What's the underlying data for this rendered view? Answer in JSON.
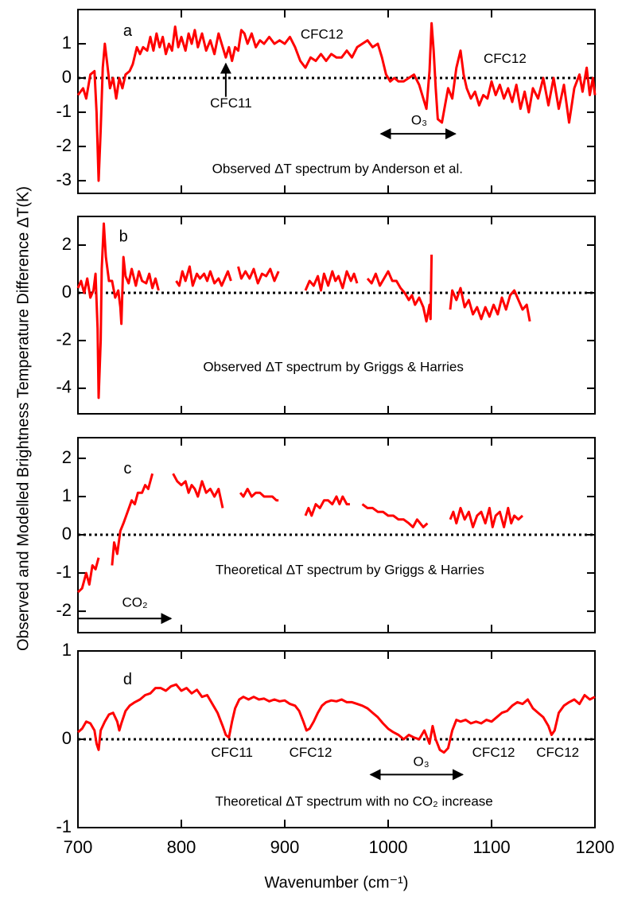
{
  "chart_data": [
    {
      "type": "line",
      "label": "a",
      "title": "Observed ΔT spectrum by Anderson et al.",
      "ylabel": "Observed and Modelled Brightness Temperature Difference ΔT(K)",
      "annotations": [
        "CFC12",
        "CFC11",
        "O₃",
        "CFC12"
      ],
      "color": "#ff0000",
      "zero_line": true,
      "xlim": [
        700,
        1200
      ],
      "ylim": [
        -3.37,
        2.0
      ],
      "yticks": [
        -3,
        -2,
        -1,
        0,
        1
      ],
      "x": [
        700,
        705,
        708,
        712,
        716,
        718,
        720,
        722,
        724,
        726,
        728,
        731,
        734,
        737,
        740,
        743,
        746,
        750,
        753,
        757,
        760,
        763,
        767,
        770,
        773,
        776,
        779,
        782,
        785,
        788,
        791,
        794,
        797,
        800,
        804,
        807,
        810,
        813,
        816,
        820,
        824,
        828,
        832,
        836,
        840,
        843,
        846,
        849,
        852,
        855,
        858,
        861,
        864,
        868,
        872,
        876,
        880,
        885,
        890,
        895,
        900,
        905,
        910,
        915,
        920,
        925,
        930,
        935,
        940,
        945,
        950,
        955,
        960,
        965,
        970,
        975,
        980,
        985,
        990,
        994,
        998,
        1002,
        1006,
        1010,
        1015,
        1020,
        1025,
        1030,
        1034,
        1037,
        1040,
        1042,
        1044,
        1046,
        1048,
        1052,
        1055,
        1058,
        1062,
        1066,
        1070,
        1073,
        1076,
        1080,
        1084,
        1088,
        1092,
        1096,
        1100,
        1104,
        1108,
        1112,
        1116,
        1120,
        1124,
        1128,
        1132,
        1136,
        1140,
        1145,
        1150,
        1155,
        1160,
        1165,
        1170,
        1175,
        1180,
        1185,
        1188,
        1192,
        1195,
        1198,
        1200
      ],
      "values": [
        -0.5,
        -0.3,
        -0.6,
        0.1,
        0.2,
        -1.0,
        -3.0,
        -1.5,
        0.3,
        1.0,
        0.5,
        -0.3,
        0.0,
        -0.6,
        0.0,
        -0.3,
        0.1,
        0.2,
        0.4,
        0.9,
        0.7,
        0.9,
        0.8,
        1.2,
        0.8,
        1.3,
        0.9,
        1.2,
        0.7,
        1.0,
        0.8,
        1.5,
        0.9,
        1.2,
        0.8,
        1.3,
        1.0,
        1.4,
        0.9,
        1.3,
        0.8,
        1.1,
        0.7,
        1.3,
        0.9,
        0.6,
        0.9,
        0.5,
        0.9,
        0.8,
        1.4,
        1.3,
        1.0,
        1.3,
        0.9,
        1.1,
        1.0,
        1.2,
        1.0,
        1.1,
        1.0,
        1.2,
        0.9,
        0.5,
        0.3,
        0.6,
        0.5,
        0.7,
        0.5,
        0.7,
        0.6,
        0.6,
        0.8,
        0.6,
        0.9,
        1.0,
        1.1,
        0.9,
        1.0,
        0.6,
        0.1,
        -0.1,
        0.0,
        -0.1,
        -0.1,
        0.0,
        0.1,
        -0.2,
        -0.6,
        -0.9,
        0.2,
        1.6,
        0.8,
        -0.3,
        -1.2,
        -1.3,
        -0.8,
        -0.3,
        -0.6,
        0.3,
        0.8,
        0.1,
        -0.3,
        -0.6,
        -0.4,
        -0.8,
        -0.5,
        -0.6,
        -0.1,
        -0.5,
        -0.2,
        -0.6,
        -0.3,
        -0.7,
        -0.2,
        -0.9,
        -0.4,
        -1.0,
        -0.3,
        -0.6,
        0.0,
        -0.8,
        0.0,
        -0.9,
        -0.2,
        -1.3,
        -0.3,
        0.1,
        -0.4,
        0.3,
        -0.5,
        0.0,
        -0.5
      ]
    },
    {
      "type": "line",
      "label": "b",
      "title": "Observed ΔT spectrum by Griggs & Harries",
      "annotations": [],
      "color": "#ff0000",
      "zero_line": true,
      "xlim": [
        700,
        1200
      ],
      "ylim": [
        -5.07,
        3.2
      ],
      "yticks": [
        -4,
        -2,
        0,
        2
      ],
      "x": [
        700,
        703,
        706,
        709,
        712,
        715,
        717,
        719,
        720,
        722,
        723,
        725,
        727,
        730,
        733,
        736,
        739,
        741,
        742,
        744,
        746,
        749,
        752,
        756,
        759,
        762,
        766,
        769,
        772,
        775,
        778,
        786,
        795,
        798,
        801,
        804,
        808,
        811,
        815,
        818,
        822,
        825,
        828,
        832,
        836,
        839,
        842,
        845,
        848,
        851,
        855,
        858,
        862,
        866,
        870,
        874,
        878,
        882,
        886,
        890,
        894,
        907,
        920,
        924,
        928,
        932,
        935,
        938,
        942,
        946,
        949,
        952,
        956,
        960,
        964,
        967,
        970,
        975,
        980,
        984,
        988,
        992,
        996,
        1000,
        1004,
        1008,
        1012,
        1016,
        1020,
        1023,
        1026,
        1030,
        1034,
        1037,
        1040,
        1041,
        1042,
        1050,
        1060,
        1062,
        1066,
        1070,
        1074,
        1078,
        1082,
        1086,
        1090,
        1094,
        1098,
        1102,
        1106,
        1110,
        1114,
        1118,
        1122,
        1126,
        1130,
        1134,
        1137
      ],
      "values": [
        0.2,
        0.5,
        0.0,
        0.6,
        -0.2,
        0.1,
        0.8,
        -1.5,
        -4.4,
        -2.0,
        1.0,
        2.9,
        1.5,
        0.5,
        0.5,
        -0.2,
        0.1,
        -0.6,
        -1.3,
        1.5,
        0.7,
        0.4,
        1.0,
        0.3,
        0.9,
        0.5,
        0.4,
        0.8,
        0.2,
        0.6,
        0.1,
        null,
        0.5,
        0.3,
        0.9,
        0.5,
        1.1,
        0.3,
        0.8,
        0.6,
        0.8,
        0.5,
        0.9,
        0.4,
        0.6,
        0.3,
        0.6,
        0.9,
        0.5,
        null,
        1.1,
        0.6,
        0.9,
        0.6,
        1.0,
        0.4,
        0.8,
        0.7,
        1.0,
        0.5,
        0.9,
        null,
        0.1,
        0.5,
        0.3,
        0.7,
        0.1,
        0.8,
        0.3,
        0.9,
        0.5,
        0.7,
        0.2,
        0.9,
        0.5,
        0.8,
        0.4,
        null,
        0.6,
        0.4,
        0.8,
        0.3,
        0.6,
        0.9,
        0.5,
        0.5,
        0.2,
        0.0,
        -0.3,
        -0.1,
        -0.5,
        -0.2,
        -0.6,
        -1.2,
        -0.5,
        -1.1,
        1.6,
        null,
        -0.7,
        0.1,
        -0.3,
        0.2,
        -0.6,
        -0.3,
        -0.9,
        -0.6,
        -1.1,
        -0.6,
        -1.0,
        -0.5,
        -0.9,
        -0.2,
        -0.7,
        -0.1,
        0.1,
        -0.3,
        -0.7,
        -0.5,
        -1.2
      ]
    },
    {
      "type": "line",
      "label": "c",
      "title": "Theoretical ΔT spectrum by Griggs & Harries",
      "annotations": [
        "CO₂"
      ],
      "color": "#ff0000",
      "zero_line": true,
      "xlim": [
        700,
        1200
      ],
      "ylim": [
        -2.56,
        2.54
      ],
      "yticks": [
        -2,
        -1,
        0,
        1,
        2
      ],
      "x": [
        700,
        704,
        708,
        711,
        714,
        717,
        720,
        727,
        733,
        735,
        738,
        741,
        744,
        748,
        752,
        755,
        758,
        762,
        765,
        768,
        772,
        782,
        792,
        796,
        800,
        804,
        807,
        810,
        813,
        816,
        820,
        824,
        828,
        832,
        836,
        840,
        848,
        857,
        860,
        864,
        868,
        872,
        876,
        880,
        884,
        888,
        892,
        894,
        907,
        920,
        923,
        926,
        930,
        934,
        938,
        942,
        946,
        950,
        953,
        956,
        960,
        963,
        969,
        975,
        980,
        985,
        990,
        995,
        1000,
        1005,
        1010,
        1015,
        1020,
        1024,
        1028,
        1031,
        1034,
        1038,
        1049,
        1060,
        1063,
        1066,
        1070,
        1074,
        1078,
        1082,
        1086,
        1090,
        1094,
        1098,
        1101,
        1104,
        1108,
        1112,
        1116,
        1119,
        1122,
        1126,
        1130
      ],
      "values": [
        -1.5,
        -1.4,
        -1.0,
        -1.3,
        -0.8,
        -0.9,
        -0.6,
        null,
        -0.8,
        -0.2,
        -0.5,
        0.1,
        0.3,
        0.6,
        0.9,
        0.8,
        1.1,
        1.1,
        1.3,
        1.2,
        1.6,
        null,
        1.6,
        1.4,
        1.3,
        1.4,
        1.1,
        1.3,
        1.2,
        1.0,
        1.4,
        1.1,
        1.2,
        1.0,
        1.2,
        0.7,
        null,
        1.1,
        1.0,
        1.2,
        1.0,
        1.1,
        1.1,
        1.0,
        1.0,
        1.0,
        0.9,
        0.9,
        null,
        0.5,
        0.7,
        0.5,
        0.8,
        0.7,
        0.9,
        0.9,
        0.8,
        1.0,
        0.8,
        1.0,
        0.8,
        0.8,
        null,
        0.8,
        0.7,
        0.7,
        0.6,
        0.6,
        0.5,
        0.5,
        0.4,
        0.4,
        0.3,
        0.2,
        0.4,
        0.3,
        0.2,
        0.3,
        null,
        0.4,
        0.6,
        0.3,
        0.7,
        0.4,
        0.6,
        0.2,
        0.5,
        0.6,
        0.3,
        0.7,
        0.2,
        0.5,
        0.6,
        0.2,
        0.7,
        0.3,
        0.5,
        0.4,
        0.5
      ]
    },
    {
      "type": "line",
      "label": "d",
      "title": "Theoretical ΔT spectrum with no CO₂ increase",
      "xlabel": "Wavenumber (cm⁻¹)",
      "annotations": [
        "CFC11",
        "CFC12",
        "O₃",
        "CFC12",
        "CFC12"
      ],
      "color": "#ff0000",
      "zero_line": true,
      "xlim": [
        700,
        1200
      ],
      "ylim": [
        -1,
        1
      ],
      "yticks": [
        -1,
        0,
        1
      ],
      "xticks": [
        700,
        800,
        900,
        1000,
        1100,
        1200
      ],
      "x": [
        700,
        704,
        708,
        712,
        716,
        718,
        720,
        722,
        726,
        730,
        734,
        738,
        740,
        742,
        746,
        750,
        755,
        760,
        765,
        770,
        775,
        780,
        785,
        790,
        795,
        800,
        805,
        810,
        815,
        820,
        825,
        830,
        835,
        840,
        843,
        846,
        849,
        852,
        856,
        860,
        865,
        870,
        875,
        880,
        885,
        890,
        895,
        900,
        905,
        910,
        914,
        918,
        921,
        924,
        928,
        932,
        936,
        940,
        945,
        950,
        955,
        960,
        965,
        970,
        975,
        980,
        985,
        990,
        995,
        1000,
        1005,
        1010,
        1015,
        1020,
        1025,
        1030,
        1035,
        1040,
        1043,
        1046,
        1050,
        1054,
        1058,
        1062,
        1066,
        1070,
        1075,
        1080,
        1085,
        1090,
        1095,
        1100,
        1105,
        1110,
        1115,
        1120,
        1125,
        1130,
        1135,
        1140,
        1145,
        1150,
        1155,
        1158,
        1161,
        1165,
        1170,
        1175,
        1180,
        1185,
        1190,
        1195,
        1200
      ],
      "values": [
        0.08,
        0.12,
        0.2,
        0.18,
        0.1,
        -0.05,
        -0.12,
        0.1,
        0.2,
        0.28,
        0.3,
        0.2,
        0.1,
        0.18,
        0.32,
        0.38,
        0.42,
        0.45,
        0.5,
        0.52,
        0.58,
        0.58,
        0.55,
        0.6,
        0.62,
        0.55,
        0.58,
        0.52,
        0.56,
        0.48,
        0.5,
        0.4,
        0.3,
        0.15,
        0.05,
        0.02,
        0.2,
        0.35,
        0.45,
        0.48,
        0.45,
        0.48,
        0.45,
        0.46,
        0.43,
        0.45,
        0.43,
        0.44,
        0.4,
        0.38,
        0.32,
        0.2,
        0.1,
        0.12,
        0.2,
        0.3,
        0.38,
        0.42,
        0.44,
        0.43,
        0.45,
        0.42,
        0.42,
        0.4,
        0.38,
        0.35,
        0.3,
        0.25,
        0.18,
        0.12,
        0.08,
        0.05,
        0.0,
        0.05,
        0.02,
        0.0,
        0.1,
        -0.05,
        0.15,
        0.0,
        -0.12,
        -0.15,
        -0.1,
        0.1,
        0.22,
        0.2,
        0.22,
        0.18,
        0.2,
        0.18,
        0.22,
        0.2,
        0.25,
        0.3,
        0.32,
        0.38,
        0.42,
        0.4,
        0.45,
        0.35,
        0.3,
        0.25,
        0.15,
        0.05,
        0.1,
        0.3,
        0.38,
        0.42,
        0.45,
        0.4,
        0.5,
        0.45,
        0.48
      ]
    }
  ]
}
